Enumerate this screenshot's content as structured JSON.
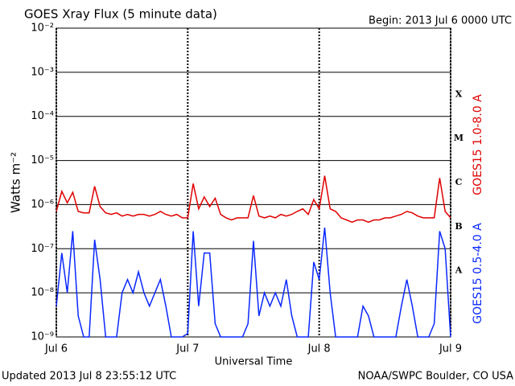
{
  "chart_data": {
    "type": "line",
    "title": "GOES Xray Flux (5 minute data)",
    "subtitle": "Begin:  2013 Jul 6 0000 UTC",
    "y_label": "Watts m⁻²",
    "x_label": "Universal Time",
    "footer_left": "Updated 2013 Jul  8 23:55:12 UTC",
    "footer_right": "NOAA/SWPC Boulder, CO USA",
    "flare_classes": [
      "X",
      "M",
      "C",
      "B",
      "A"
    ],
    "ylog": true,
    "grid": true,
    "ylim": [
      1e-09,
      0.01
    ],
    "yticks": [
      {
        "value": 1e-09,
        "label": "10⁻⁹"
      },
      {
        "value": 1e-08,
        "label": "10⁻⁸"
      },
      {
        "value": 1e-07,
        "label": "10⁻⁷"
      },
      {
        "value": 1e-06,
        "label": "10⁻⁶"
      },
      {
        "value": 1e-05,
        "label": "10⁻⁵"
      },
      {
        "value": 0.0001,
        "label": "10⁻⁴"
      },
      {
        "value": 0.001,
        "label": "10⁻³"
      },
      {
        "value": 0.01,
        "label": "10⁻²"
      }
    ],
    "xlim": [
      "2013-07-06T00:00Z",
      "2013-07-09T00:00Z"
    ],
    "xticks": [
      {
        "value": "2013-07-06T00:00Z",
        "label": "Jul 6"
      },
      {
        "value": "2013-07-07T00:00Z",
        "label": "Jul 7"
      },
      {
        "value": "2013-07-08T00:00Z",
        "label": "Jul 8"
      },
      {
        "value": "2013-07-09T00:00Z",
        "label": "Jul 9"
      }
    ],
    "x": [
      "2013-07-06T00:00Z",
      "2013-07-06T01:00Z",
      "2013-07-06T02:00Z",
      "2013-07-06T03:00Z",
      "2013-07-06T04:00Z",
      "2013-07-06T05:00Z",
      "2013-07-06T06:00Z",
      "2013-07-06T07:00Z",
      "2013-07-06T08:00Z",
      "2013-07-06T09:00Z",
      "2013-07-06T10:00Z",
      "2013-07-06T11:00Z",
      "2013-07-06T12:00Z",
      "2013-07-06T13:00Z",
      "2013-07-06T14:00Z",
      "2013-07-06T15:00Z",
      "2013-07-06T16:00Z",
      "2013-07-06T17:00Z",
      "2013-07-06T18:00Z",
      "2013-07-06T19:00Z",
      "2013-07-06T20:00Z",
      "2013-07-06T21:00Z",
      "2013-07-06T22:00Z",
      "2013-07-06T23:00Z",
      "2013-07-07T00:00Z",
      "2013-07-07T01:00Z",
      "2013-07-07T02:00Z",
      "2013-07-07T03:00Z",
      "2013-07-07T04:00Z",
      "2013-07-07T05:00Z",
      "2013-07-07T06:00Z",
      "2013-07-07T07:00Z",
      "2013-07-07T08:00Z",
      "2013-07-07T09:00Z",
      "2013-07-07T10:00Z",
      "2013-07-07T11:00Z",
      "2013-07-07T12:00Z",
      "2013-07-07T13:00Z",
      "2013-07-07T14:00Z",
      "2013-07-07T15:00Z",
      "2013-07-07T16:00Z",
      "2013-07-07T17:00Z",
      "2013-07-07T18:00Z",
      "2013-07-07T19:00Z",
      "2013-07-07T20:00Z",
      "2013-07-07T21:00Z",
      "2013-07-07T22:00Z",
      "2013-07-07T23:00Z",
      "2013-07-08T00:00Z",
      "2013-07-08T01:00Z",
      "2013-07-08T02:00Z",
      "2013-07-08T03:00Z",
      "2013-07-08T04:00Z",
      "2013-07-08T05:00Z",
      "2013-07-08T06:00Z",
      "2013-07-08T07:00Z",
      "2013-07-08T08:00Z",
      "2013-07-08T09:00Z",
      "2013-07-08T10:00Z",
      "2013-07-08T11:00Z",
      "2013-07-08T12:00Z",
      "2013-07-08T13:00Z",
      "2013-07-08T14:00Z",
      "2013-07-08T15:00Z",
      "2013-07-08T16:00Z",
      "2013-07-08T17:00Z",
      "2013-07-08T18:00Z",
      "2013-07-08T19:00Z",
      "2013-07-08T20:00Z",
      "2013-07-08T21:00Z",
      "2013-07-08T22:00Z",
      "2013-07-08T23:00Z",
      "2013-07-09T00:00Z"
    ],
    "series": [
      {
        "name": "GOES15 1.0-8.0 A",
        "color": "#e00000",
        "values": [
          7e-07,
          2e-06,
          1.1e-06,
          1.9e-06,
          7e-07,
          6.5e-07,
          6.5e-07,
          2.6e-06,
          9e-07,
          6.5e-07,
          6e-07,
          6.5e-07,
          5.5e-07,
          6e-07,
          5.5e-07,
          6e-07,
          6e-07,
          5.5e-07,
          6e-07,
          7e-07,
          6e-07,
          5.5e-07,
          6e-07,
          5e-07,
          5e-07,
          3e-06,
          8e-07,
          1.5e-06,
          9e-07,
          1.4e-06,
          6e-07,
          5e-07,
          4.5e-07,
          5e-07,
          5e-07,
          5e-07,
          1.6e-06,
          5.5e-07,
          5e-07,
          5.5e-07,
          5e-07,
          6e-07,
          5.5e-07,
          6e-07,
          7e-07,
          8e-07,
          6e-07,
          1.3e-06,
          8e-07,
          4.5e-06,
          8e-07,
          7e-07,
          5e-07,
          4.5e-07,
          4e-07,
          4.5e-07,
          4.5e-07,
          4e-07,
          4.5e-07,
          4.5e-07,
          5e-07,
          5e-07,
          5.5e-07,
          6e-07,
          7e-07,
          6.5e-07,
          5.5e-07,
          5e-07,
          5e-07,
          5e-07,
          4e-06,
          7e-07,
          5e-07
        ]
      },
      {
        "name": "GOES15 0.5-4.0 A",
        "color": "#0a28ff",
        "values": [
          5e-09,
          8e-08,
          1e-08,
          2.5e-07,
          3e-09,
          1e-09,
          1e-09,
          1.6e-07,
          2e-08,
          1e-09,
          1e-09,
          1e-09,
          1e-08,
          2e-08,
          1e-08,
          3e-08,
          1e-08,
          5e-09,
          1e-08,
          2e-08,
          5e-09,
          1e-09,
          1e-09,
          1e-09,
          1.2e-09,
          2.5e-07,
          5e-09,
          8e-08,
          8e-08,
          2e-09,
          1e-09,
          1e-09,
          1e-09,
          1e-09,
          1e-09,
          2e-09,
          1.5e-07,
          3e-09,
          1e-08,
          5e-09,
          1e-08,
          5e-09,
          2e-08,
          3e-09,
          1e-09,
          1e-09,
          1e-09,
          5e-08,
          2e-08,
          3e-07,
          1e-08,
          1e-09,
          1e-09,
          1e-09,
          1e-09,
          1e-09,
          5e-09,
          3e-09,
          1e-09,
          1e-09,
          1e-09,
          1e-09,
          1e-09,
          5e-09,
          2e-08,
          5e-09,
          1e-09,
          1e-09,
          1e-09,
          2e-09,
          2.5e-07,
          1e-07,
          1e-09
        ]
      }
    ]
  }
}
